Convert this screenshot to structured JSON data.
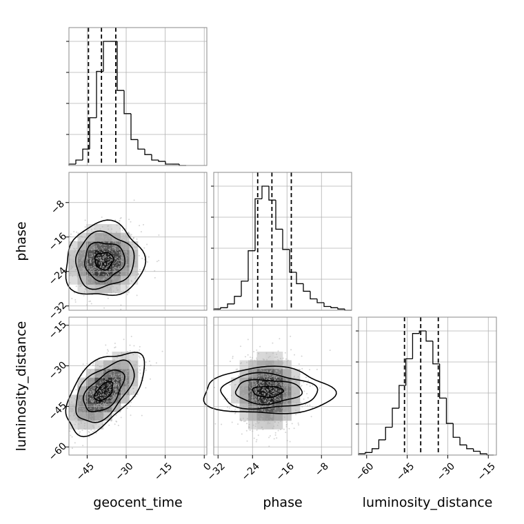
{
  "chart_data": {
    "type": "corner",
    "parameters": [
      "geocent_time",
      "phase",
      "luminosity_distance"
    ],
    "axis_labels": {
      "geocent_time": "geocent_time",
      "phase": "phase",
      "luminosity_distance": "luminosity_distance"
    },
    "ranges": {
      "geocent_time": [
        -52,
        1
      ],
      "phase": [
        -33,
        -1
      ],
      "luminosity_distance": [
        -63,
        -12
      ]
    },
    "ticks": {
      "geocent_time": [
        -45,
        -30,
        -15,
        0
      ],
      "phase": [
        -32,
        -24,
        -16,
        -8
      ],
      "luminosity_distance": [
        -60,
        -45,
        -30,
        -15
      ]
    },
    "tick_labels": {
      "geocent_time": [
        "−45",
        "−30",
        "−15",
        "0"
      ],
      "phase": [
        "−32",
        "−24",
        "−16",
        "−8"
      ],
      "luminosity_distance": [
        "−60",
        "−45",
        "−30",
        "−15"
      ]
    },
    "quantiles": {
      "geocent_time": [
        -44.5,
        -39.5,
        -34
      ],
      "phase": [
        -22.8,
        -19.5,
        -15
      ],
      "luminosity_distance": [
        -46,
        -40,
        -33.5
      ]
    },
    "histograms": {
      "geocent_time": {
        "edges": [
          -52,
          -49.35,
          -46.7,
          -44.05,
          -41.4,
          -38.75,
          -36.1,
          -33.45,
          -30.8,
          -28.15,
          -25.5,
          -22.85,
          -20.2,
          -17.55,
          -14.9,
          -12.25,
          -9.6,
          -6.95
        ],
        "counts": [
          0.01,
          0.04,
          0.12,
          0.35,
          0.69,
          0.91,
          0.91,
          0.55,
          0.38,
          0.19,
          0.12,
          0.08,
          0.04,
          0.03,
          0.01,
          0.01,
          0.0
        ]
      },
      "phase": {
        "edges": [
          -33,
          -31.4,
          -29.8,
          -28.2,
          -26.6,
          -25,
          -23.4,
          -21.8,
          -20.2,
          -18.6,
          -17,
          -15.4,
          -13.8,
          -12.2,
          -10.6,
          -9,
          -7.4,
          -5.8,
          -4.2,
          -2.6,
          -1
        ],
        "counts": [
          0.01,
          0.02,
          0.05,
          0.11,
          0.23,
          0.47,
          0.88,
          0.98,
          0.87,
          0.64,
          0.48,
          0.3,
          0.21,
          0.15,
          0.09,
          0.06,
          0.03,
          0.02,
          0.01,
          0.0
        ]
      },
      "luminosity_distance": {
        "edges": [
          -63,
          -60.5,
          -58,
          -55.5,
          -53,
          -50.5,
          -48,
          -45.5,
          -43,
          -40.5,
          -38,
          -35.5,
          -33,
          -30.5,
          -28,
          -25.5,
          -23,
          -20.5,
          -18,
          -15.5,
          -13
        ],
        "counts": [
          0.01,
          0.02,
          0.05,
          0.12,
          0.22,
          0.37,
          0.55,
          0.76,
          0.96,
          0.98,
          0.9,
          0.72,
          0.45,
          0.25,
          0.14,
          0.08,
          0.05,
          0.03,
          0.01,
          0.0
        ]
      }
    },
    "pairs": [
      {
        "x": "geocent_time",
        "y": "phase",
        "mean": [
          -38.5,
          -21.5
        ],
        "std": [
          7,
          4
        ],
        "rho": 0.05,
        "contour_levels": [
          0.5,
          1.1,
          1.6,
          2.15
        ]
      },
      {
        "x": "geocent_time",
        "y": "luminosity_distance",
        "mean": [
          -38.5,
          -39.5
        ],
        "std": [
          7,
          7
        ],
        "rho": 0.55,
        "contour_levels": [
          0.5,
          1.1,
          1.6,
          2.15
        ]
      },
      {
        "x": "phase",
        "y": "luminosity_distance",
        "mean": [
          -20.5,
          -39.5
        ],
        "std": [
          4,
          7
        ],
        "rho": 0.0,
        "contour_levels": [
          0.5,
          1.1,
          1.6,
          2.15
        ]
      }
    ],
    "grid": true,
    "legend": "none",
    "scatter_color": "#b0b0b0",
    "line_color": "#000000"
  }
}
